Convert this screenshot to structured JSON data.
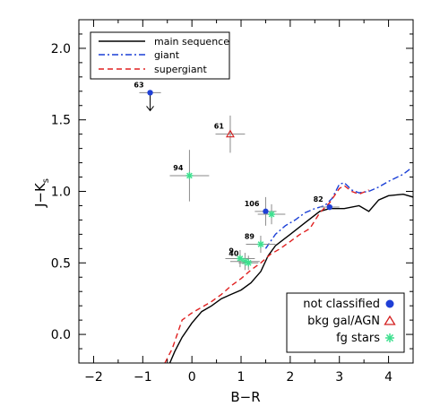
{
  "chart_data": {
    "type": "scatter",
    "xlabel": "B−R",
    "ylabel": "J−K",
    "ylabel_sub": "s",
    "xlim": [
      -2.3,
      4.5
    ],
    "ylim": [
      -0.2,
      2.2
    ],
    "xticks": [
      -2,
      -1,
      0,
      1,
      2,
      3,
      4
    ],
    "yticks": [
      0.0,
      0.5,
      1.0,
      1.5,
      2.0
    ],
    "ytick_labels": [
      "0.0",
      "0.5",
      "1.0",
      "1.5",
      "2.0"
    ],
    "curve_legend": [
      {
        "name": "main sequence",
        "color": "#000000",
        "dash": "solid"
      },
      {
        "name": "giant",
        "color": "#1a3fd6",
        "dash": "dashdot"
      },
      {
        "name": "supergiant",
        "color": "#e02020",
        "dash": "dashed"
      }
    ],
    "class_legend": [
      {
        "name": "not classified",
        "symbol": "filled-circle",
        "color": "#1f3fd6"
      },
      {
        "name": "bkg gal/AGN",
        "symbol": "open-triangle",
        "color": "#d42020"
      },
      {
        "name": "fg stars",
        "symbol": "asterisk",
        "color": "#3ee08f"
      }
    ],
    "curves": {
      "main_sequence": [
        [
          -0.45,
          -0.2
        ],
        [
          -0.35,
          -0.12
        ],
        [
          -0.2,
          -0.02
        ],
        [
          0.0,
          0.08
        ],
        [
          0.2,
          0.16
        ],
        [
          0.4,
          0.2
        ],
        [
          0.6,
          0.25
        ],
        [
          0.8,
          0.28
        ],
        [
          1.0,
          0.31
        ],
        [
          1.2,
          0.36
        ],
        [
          1.4,
          0.44
        ],
        [
          1.55,
          0.55
        ],
        [
          1.7,
          0.62
        ],
        [
          2.0,
          0.7
        ],
        [
          2.3,
          0.78
        ],
        [
          2.6,
          0.86
        ],
        [
          2.8,
          0.88
        ],
        [
          3.1,
          0.88
        ],
        [
          3.4,
          0.9
        ],
        [
          3.6,
          0.86
        ],
        [
          3.8,
          0.94
        ],
        [
          4.0,
          0.97
        ],
        [
          4.3,
          0.98
        ],
        [
          4.5,
          0.96
        ]
      ],
      "giant": [
        [
          1.5,
          0.6
        ],
        [
          1.7,
          0.7
        ],
        [
          1.9,
          0.76
        ],
        [
          2.1,
          0.8
        ],
        [
          2.3,
          0.85
        ],
        [
          2.5,
          0.88
        ],
        [
          2.7,
          0.9
        ],
        [
          2.85,
          0.95
        ],
        [
          3.0,
          1.05
        ],
        [
          3.1,
          1.06
        ],
        [
          3.25,
          1.01
        ],
        [
          3.4,
          0.99
        ],
        [
          3.6,
          1.0
        ],
        [
          3.8,
          1.03
        ],
        [
          4.0,
          1.07
        ],
        [
          4.3,
          1.12
        ],
        [
          4.45,
          1.16
        ]
      ],
      "supergiant": [
        [
          -0.55,
          -0.2
        ],
        [
          -0.4,
          -0.1
        ],
        [
          -0.3,
          0.0
        ],
        [
          -0.2,
          0.1
        ],
        [
          0.0,
          0.15
        ],
        [
          0.2,
          0.19
        ],
        [
          0.4,
          0.23
        ],
        [
          0.6,
          0.28
        ],
        [
          0.8,
          0.34
        ],
        [
          1.0,
          0.39
        ],
        [
          1.2,
          0.45
        ],
        [
          1.4,
          0.5
        ],
        [
          1.6,
          0.56
        ],
        [
          1.8,
          0.6
        ],
        [
          2.0,
          0.65
        ],
        [
          2.2,
          0.7
        ],
        [
          2.4,
          0.74
        ],
        [
          2.6,
          0.85
        ],
        [
          2.8,
          0.92
        ],
        [
          3.0,
          1.02
        ],
        [
          3.1,
          1.04
        ],
        [
          3.25,
          1.0
        ],
        [
          3.4,
          0.98
        ],
        [
          3.6,
          1.01
        ]
      ]
    },
    "points": [
      {
        "label": "63",
        "x": -0.85,
        "y": 1.69,
        "xerr": 0.22,
        "yerr": 0.0,
        "cls": "not classified",
        "upper_limit": true
      },
      {
        "label": "61",
        "x": 0.78,
        "y": 1.4,
        "xerr": 0.3,
        "yerr": 0.13,
        "cls": "bkg gal/AGN"
      },
      {
        "label": "94",
        "x": -0.05,
        "y": 1.11,
        "xerr": 0.4,
        "yerr": 0.18,
        "cls": "fg stars"
      },
      {
        "label": "106",
        "x": 1.5,
        "y": 0.86,
        "xerr": 0.22,
        "yerr": 0.1,
        "cls": "not classified"
      },
      {
        "label": "",
        "x": 1.62,
        "y": 0.84,
        "xerr": 0.28,
        "yerr": 0.07,
        "cls": "fg stars"
      },
      {
        "label": "82",
        "x": 2.8,
        "y": 0.89,
        "xerr": 0.2,
        "yerr": 0.02,
        "cls": "not classified"
      },
      {
        "label": "89",
        "x": 1.4,
        "y": 0.63,
        "xerr": 0.3,
        "yerr": 0.06,
        "cls": "fg stars"
      },
      {
        "label": "9",
        "x": 0.98,
        "y": 0.53,
        "xerr": 0.3,
        "yerr": 0.06,
        "cls": "fg stars"
      },
      {
        "label": "40",
        "x": 1.08,
        "y": 0.51,
        "xerr": 0.3,
        "yerr": 0.06,
        "cls": "fg stars"
      },
      {
        "label": "",
        "x": 1.15,
        "y": 0.5,
        "xerr": 0.2,
        "yerr": 0.05,
        "cls": "fg stars"
      }
    ]
  }
}
